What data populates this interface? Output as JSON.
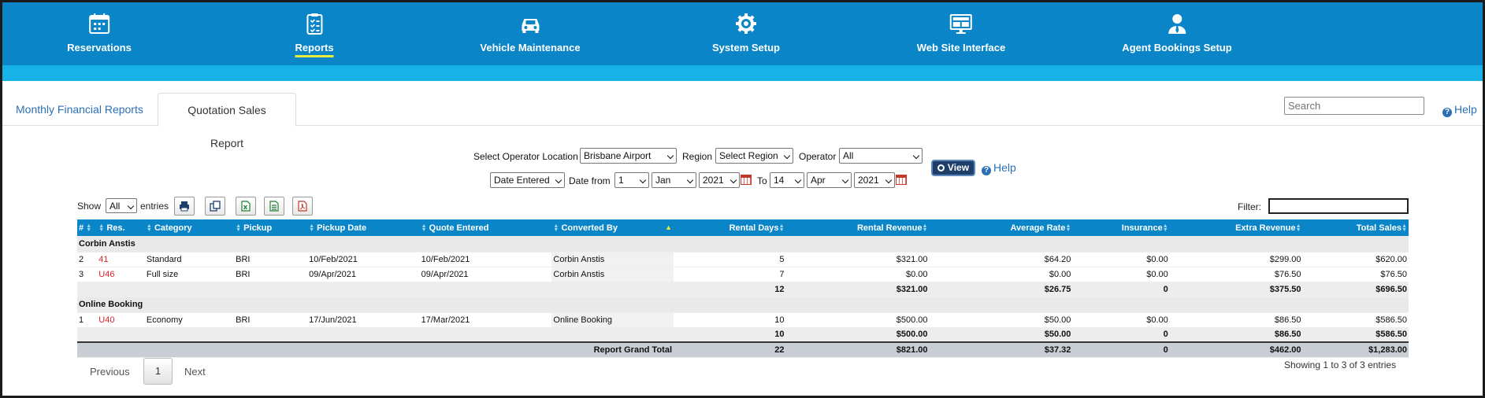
{
  "nav": {
    "items": [
      {
        "label": "Reservations",
        "icon": "calendar-icon"
      },
      {
        "label": "Reports",
        "icon": "clipboard-list-icon"
      },
      {
        "label": "Vehicle Maintenance",
        "icon": "car-icon"
      },
      {
        "label": "System Setup",
        "icon": "gear-icon"
      },
      {
        "label": "Web Site Interface",
        "icon": "monitor-icon"
      },
      {
        "label": "Agent Bookings Setup",
        "icon": "user-icon"
      }
    ],
    "active": "Reports"
  },
  "tabs": [
    {
      "label": "Monthly Financial Reports"
    },
    {
      "label": "Quotation Sales Report"
    }
  ],
  "search": {
    "placeholder": "Search"
  },
  "help_label": "Help",
  "filters": {
    "location_label": "Select Operator Location",
    "location_value": "Brisbane Airport",
    "region_label": "Region",
    "region_value": "Select Region",
    "operator_label": "Operator",
    "operator_value": "All",
    "date_type_value": "Date Entered",
    "date_from_label": "Date from",
    "from_day": "1",
    "from_month": "Jan",
    "from_year": "2021",
    "to_label": "To",
    "to_day": "14",
    "to_month": "Apr",
    "to_year": "2021",
    "view_label": "View",
    "help_label": "Help"
  },
  "toolbar": {
    "show_label": "Show",
    "show_value": "All",
    "entries_label": "entries",
    "filter_label": "Filter:"
  },
  "table": {
    "headers": [
      "#",
      "Res.",
      "Category",
      "Pickup",
      "Pickup Date",
      "Quote Entered",
      "Converted By",
      "Rental Days",
      "Rental Revenue",
      "Average Rate",
      "Insurance",
      "Extra Revenue",
      "Total Sales"
    ],
    "groups": [
      {
        "name": "Corbin Anstis",
        "rows": [
          [
            "2",
            "41",
            "Standard",
            "BRI",
            "10/Feb/2021",
            "10/Feb/2021",
            "Corbin Anstis",
            "5",
            "$321.00",
            "$64.20",
            "$0.00",
            "$299.00",
            "$620.00"
          ],
          [
            "3",
            "U46",
            "Full size",
            "BRI",
            "09/Apr/2021",
            "09/Apr/2021",
            "Corbin Anstis",
            "7",
            "$0.00",
            "$0.00",
            "$0.00",
            "$76.50",
            "$76.50"
          ]
        ],
        "subtotal": [
          "12",
          "$321.00",
          "$26.75",
          "0",
          "$375.50",
          "$696.50"
        ]
      },
      {
        "name": "Online Booking",
        "rows": [
          [
            "1",
            "U40",
            "Economy",
            "BRI",
            "17/Jun/2021",
            "17/Mar/2021",
            "Online Booking",
            "10",
            "$500.00",
            "$50.00",
            "$0.00",
            "$86.50",
            "$586.50"
          ]
        ],
        "subtotal": [
          "10",
          "$500.00",
          "$50.00",
          "0",
          "$86.50",
          "$586.50"
        ]
      }
    ],
    "grand_total_label": "Report Grand Total",
    "grand_total": [
      "22",
      "$821.00",
      "$37.32",
      "0",
      "$462.00",
      "$1,283.00"
    ]
  },
  "pagination": {
    "previous": "Previous",
    "current": "1",
    "next": "Next",
    "showing": "Showing 1 to 3 of 3 entries"
  }
}
